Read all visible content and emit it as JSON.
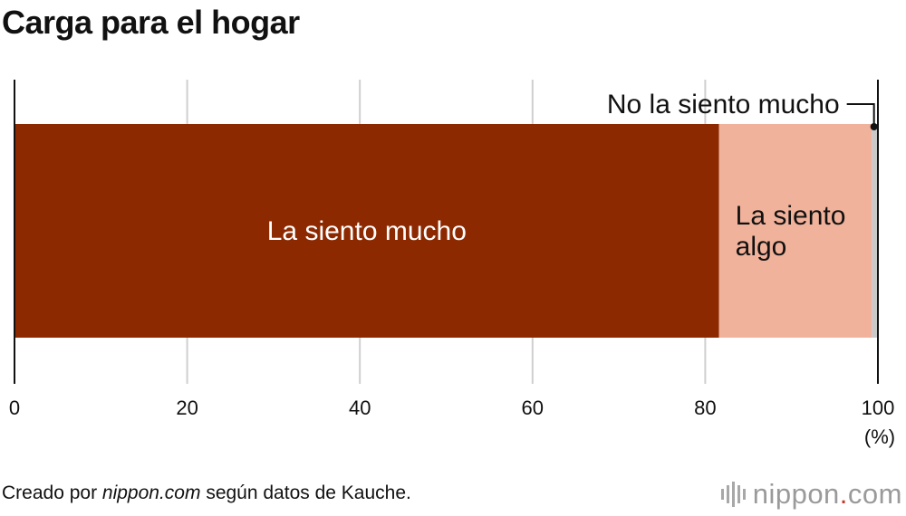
{
  "title": "Carga para el hogar",
  "source": {
    "prefix": "Creado por ",
    "site": "nippon.com",
    "suffix": " según datos de Kauche."
  },
  "brand": {
    "name": "nippon",
    "dot": ".",
    "tld": "com"
  },
  "chart_data": {
    "type": "bar",
    "orientation": "horizontal",
    "stacked": true,
    "title": "Carga para el hogar",
    "xlim": [
      0,
      100
    ],
    "xticks": [
      0,
      20,
      40,
      60,
      80,
      100
    ],
    "unit": "(%)",
    "grid": true,
    "series": [
      {
        "name": "La siento mucho",
        "label_lines": [
          "La siento mucho"
        ],
        "value": 81.6,
        "color": "#8c2900",
        "label_color": "#ffffff"
      },
      {
        "name": "La siento algo",
        "label_lines": [
          "La siento",
          "algo"
        ],
        "value": 17.7,
        "color": "#f1b29b",
        "label_color": "#111111"
      },
      {
        "name": "No la siento mucho",
        "label_lines": [
          "No la siento mucho"
        ],
        "value": 0.7,
        "color": "#c9c9c9",
        "label_color": "#111111",
        "callout": true
      }
    ]
  }
}
